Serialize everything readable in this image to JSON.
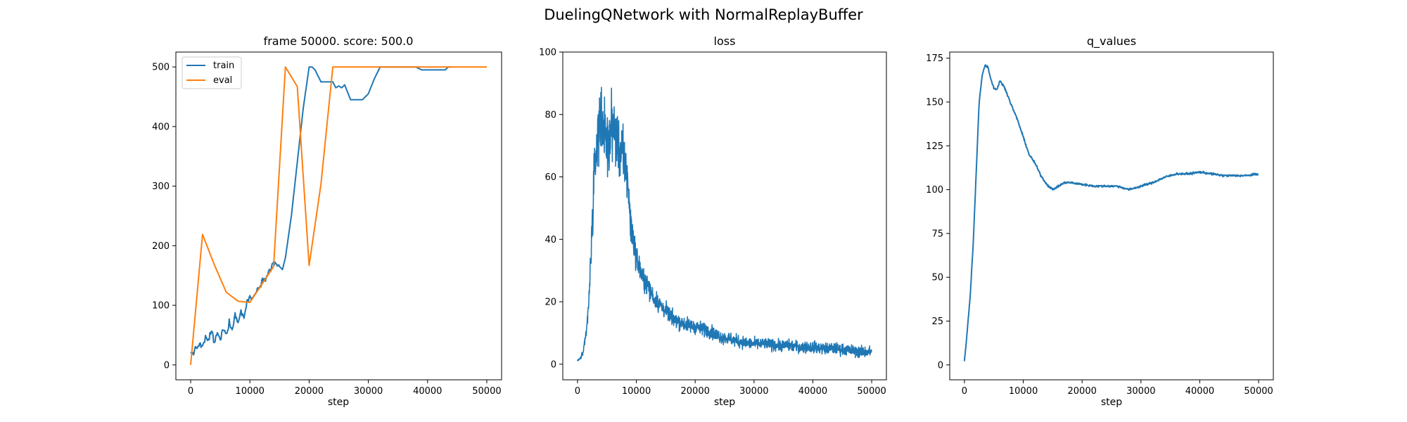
{
  "figure": {
    "title": "DuelingQNetwork with NormalReplayBuffer"
  },
  "colors": {
    "train": "#1f77b4",
    "eval": "#ff7f0e",
    "loss": "#1f77b4",
    "q": "#1f77b4"
  },
  "chart_data": [
    {
      "type": "line",
      "title": "frame 50000. score: 500.0",
      "xlabel": "step",
      "ylabel": "",
      "xlim": [
        -2500,
        52500
      ],
      "ylim": [
        -25,
        525
      ],
      "xticks": [
        0,
        10000,
        20000,
        30000,
        40000,
        50000
      ],
      "yticks": [
        0,
        100,
        200,
        300,
        400,
        500
      ],
      "legend": {
        "placement": "upper-left"
      },
      "series": [
        {
          "name": "train",
          "color": "#1f77b4",
          "style": "jagged",
          "x": [
            0,
            500,
            1000,
            1500,
            2000,
            2500,
            3000,
            3500,
            4000,
            4500,
            5000,
            5500,
            6000,
            6500,
            7000,
            7500,
            8000,
            8500,
            9000,
            9500,
            10000,
            10500,
            11000,
            11500,
            12000,
            12500,
            13000,
            13500,
            14000,
            14500,
            15000,
            15500,
            16000,
            17000,
            18000,
            19000,
            20000,
            20500,
            21000,
            22000,
            23000,
            24000,
            24500,
            25000,
            25500,
            26000,
            27000,
            28000,
            29000,
            30000,
            31000,
            32000,
            35000,
            38000,
            39000,
            43000,
            43500,
            44000
          ],
          "y": [
            18,
            22,
            28,
            35,
            30,
            45,
            40,
            60,
            35,
            55,
            40,
            62,
            50,
            72,
            60,
            85,
            70,
            90,
            80,
            105,
            115,
            110,
            125,
            130,
            140,
            145,
            155,
            160,
            172,
            170,
            165,
            160,
            180,
            250,
            340,
            430,
            500,
            500,
            495,
            475,
            475,
            475,
            465,
            468,
            465,
            470,
            445,
            445,
            445,
            455,
            480,
            500,
            500,
            500,
            495,
            495,
            500,
            500
          ]
        },
        {
          "name": "eval",
          "color": "#ff7f0e",
          "style": "line",
          "x": [
            0,
            2000,
            4000,
            6000,
            8000,
            10000,
            12000,
            14000,
            16000,
            18000,
            20000,
            22000,
            24000,
            26000,
            28000,
            30000,
            32000,
            34000,
            36000,
            38000,
            40000,
            42000,
            44000,
            46000,
            48000,
            50000
          ],
          "y": [
            0,
            219,
            168,
            122,
            107,
            105,
            135,
            165,
            500,
            467,
            167,
            303,
            500,
            500,
            500,
            500,
            500,
            500,
            500,
            500,
            500,
            500,
            500,
            500,
            500,
            500
          ]
        }
      ]
    },
    {
      "type": "line",
      "title": "loss",
      "xlabel": "step",
      "ylabel": "",
      "xlim": [
        -2500,
        52500
      ],
      "ylim": [
        -5,
        100
      ],
      "xticks": [
        0,
        10000,
        20000,
        30000,
        40000,
        50000
      ],
      "yticks": [
        0,
        20,
        40,
        60,
        80,
        100
      ],
      "series": [
        {
          "name": "",
          "color": "#1f77b4",
          "style": "noisy",
          "x": [
            0,
            500,
            1000,
            1500,
            2000,
            2500,
            3000,
            3500,
            4000,
            4500,
            5000,
            5500,
            6000,
            6500,
            7000,
            7500,
            8000,
            8500,
            9000,
            9500,
            10000,
            11000,
            12000,
            13000,
            14000,
            15000,
            16000,
            18000,
            20000,
            22000,
            24000,
            26000,
            28000,
            30000,
            32000,
            34000,
            36000,
            38000,
            40000,
            42000,
            44000,
            46000,
            48000,
            50000
          ],
          "y": [
            1,
            2,
            4,
            10,
            22,
            45,
            65,
            75,
            80,
            75,
            70,
            72,
            78,
            72,
            70,
            67,
            65,
            60,
            45,
            40,
            34,
            28,
            25,
            21,
            19,
            17,
            15,
            13,
            12,
            11,
            9,
            8,
            7,
            6.5,
            6.5,
            6,
            6,
            5.5,
            5.5,
            5,
            5,
            4.5,
            4,
            4
          ],
          "noise": [
            0.3,
            0.5,
            1,
            2,
            4,
            7,
            9,
            10,
            10,
            10,
            10,
            10,
            10,
            10,
            9,
            9,
            9,
            8,
            6,
            5,
            4,
            3.5,
            3,
            3,
            2.8,
            2.6,
            2.4,
            2.3,
            2.2,
            2.1,
            2,
            2,
            1.9,
            1.8,
            1.8,
            1.8,
            1.8,
            1.8,
            1.8,
            1.8,
            1.8,
            1.8,
            1.8,
            1.8
          ],
          "max": 95
        }
      ]
    },
    {
      "type": "line",
      "title": "q_values",
      "xlabel": "step",
      "ylabel": "",
      "xlim": [
        -2500,
        52500
      ],
      "ylim": [
        -8.5,
        178.5
      ],
      "xticks": [
        0,
        10000,
        20000,
        30000,
        40000,
        50000
      ],
      "yticks": [
        0,
        25,
        50,
        75,
        100,
        125,
        150,
        175
      ],
      "series": [
        {
          "name": "",
          "color": "#1f77b4",
          "style": "slight",
          "x": [
            0,
            500,
            1000,
            1500,
            2000,
            2500,
            3000,
            3500,
            4000,
            4500,
            5000,
            5500,
            6000,
            6500,
            7000,
            8000,
            9000,
            10000,
            11000,
            12000,
            13000,
            14000,
            15000,
            16000,
            17000,
            18000,
            20000,
            22000,
            24000,
            26000,
            28000,
            30000,
            32000,
            34000,
            36000,
            38000,
            40000,
            42000,
            44000,
            46000,
            48000,
            50000
          ],
          "y": [
            2,
            20,
            40,
            70,
            110,
            150,
            165,
            171,
            170,
            163,
            158,
            157,
            162,
            160,
            157,
            148,
            140,
            130,
            120,
            115,
            108,
            103,
            100,
            102,
            104,
            104,
            103,
            102,
            102,
            102,
            100,
            102,
            104,
            107,
            109,
            109,
            110,
            109,
            108,
            108,
            108,
            109
          ]
        }
      ]
    }
  ]
}
